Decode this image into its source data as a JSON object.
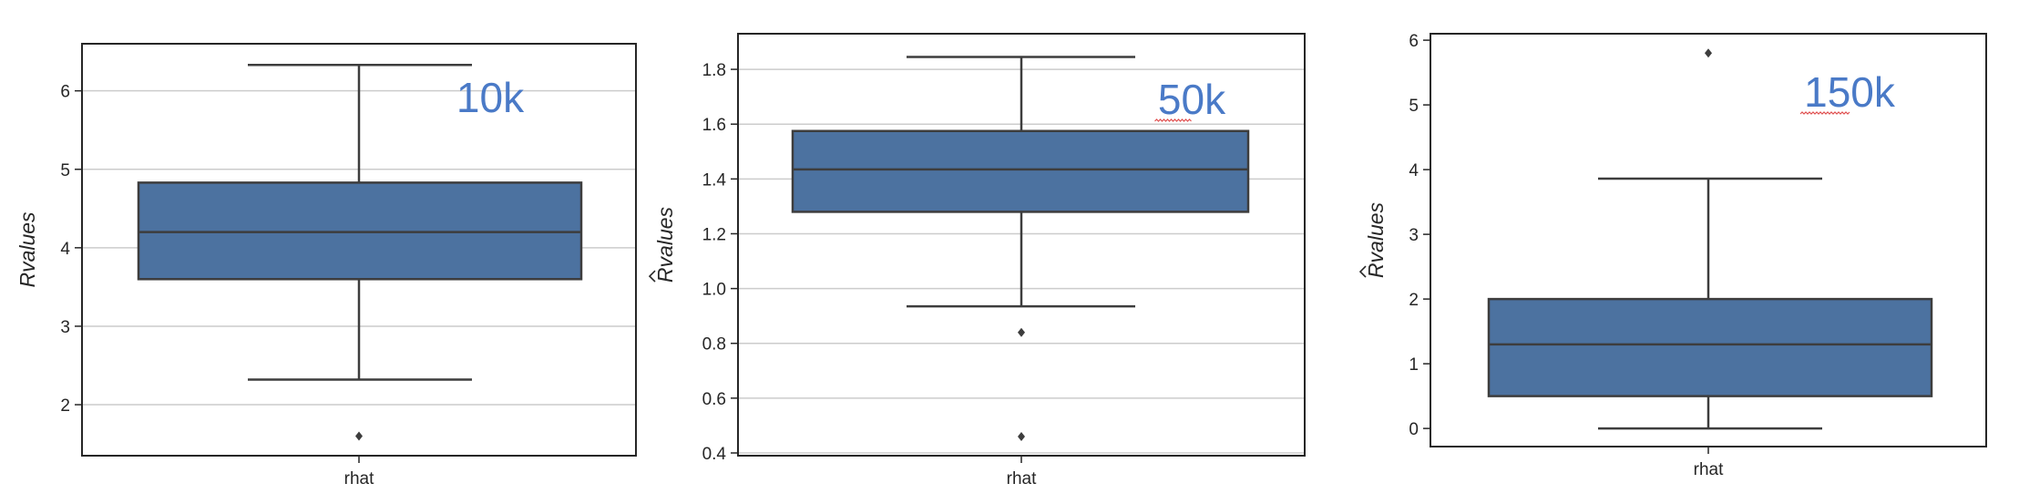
{
  "chart_data": [
    {
      "type": "box",
      "annotation": "10k",
      "ylabel": "Rvalues",
      "ylabel_hat": false,
      "xlabel": "",
      "category": "rhat",
      "ylim": [
        1.35,
        6.6
      ],
      "yticks": [
        2,
        3,
        4,
        5,
        6
      ],
      "tick_decimals": 0,
      "box": {
        "q1": 3.6,
        "median": 4.2,
        "q3": 4.83,
        "whisker_low": 2.32,
        "whisker_high": 6.33
      },
      "outliers": [
        1.6
      ],
      "grid": true,
      "colors": {
        "box": "#4c72a0",
        "annotation": "#4a7ac7"
      }
    },
    {
      "type": "box",
      "annotation": "50k",
      "ylabel": "Rvalues",
      "ylabel_hat": true,
      "xlabel": "",
      "category": "rhat",
      "ylim": [
        0.39,
        1.93
      ],
      "yticks": [
        0.4,
        0.6,
        0.8,
        1.0,
        1.2,
        1.4,
        1.6,
        1.8
      ],
      "tick_decimals": 1,
      "box": {
        "q1": 1.28,
        "median": 1.435,
        "q3": 1.575,
        "whisker_low": 0.935,
        "whisker_high": 1.845
      },
      "outliers": [
        0.84,
        0.46
      ],
      "grid": true,
      "colors": {
        "box": "#4c72a0",
        "annotation": "#4a7ac7"
      }
    },
    {
      "type": "box",
      "annotation": "150k",
      "ylabel": "Rvalues",
      "ylabel_hat": true,
      "xlabel": "",
      "category": "rhat",
      "ylim": [
        -0.28,
        6.1
      ],
      "yticks": [
        0,
        1,
        2,
        3,
        4,
        5,
        6
      ],
      "tick_decimals": 0,
      "box": {
        "q1": 0.5,
        "median": 1.3,
        "q3": 2.0,
        "whisker_low": 0.0,
        "whisker_high": 3.86
      },
      "outliers": [
        5.8
      ],
      "grid": false,
      "colors": {
        "box": "#4c72a0",
        "annotation": "#4a7ac7"
      }
    }
  ]
}
